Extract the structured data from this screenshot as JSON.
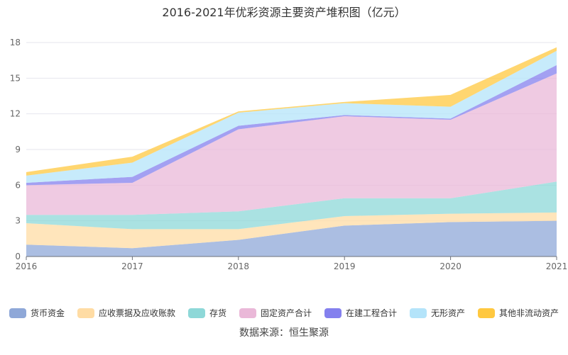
{
  "chart_data": {
    "type": "area",
    "stacked": true,
    "title": "2016-2021年优彩资源主要资产堆积图（亿元）",
    "x": [
      "2016",
      "2017",
      "2018",
      "2019",
      "2020",
      "2021"
    ],
    "ylim": [
      0,
      18
    ],
    "yticks": [
      0,
      3,
      6,
      9,
      12,
      15,
      18
    ],
    "grid": true,
    "legend": "bottom",
    "source": "数据来源：恒生聚源",
    "series": [
      {
        "name": "货币资金",
        "color": "#8fa8d8",
        "values": [
          1.0,
          0.7,
          1.4,
          2.6,
          2.9,
          3.0
        ]
      },
      {
        "name": "应收票据及应收账款",
        "color": "#ffdca4",
        "values": [
          1.8,
          1.6,
          0.9,
          0.8,
          0.7,
          0.7
        ]
      },
      {
        "name": "存货",
        "color": "#8ed8d8",
        "values": [
          0.7,
          1.2,
          1.5,
          1.5,
          1.3,
          2.6
        ]
      },
      {
        "name": "固定资产合计",
        "color": "#eab8d8",
        "values": [
          2.5,
          2.7,
          6.9,
          6.9,
          6.6,
          9.1
        ]
      },
      {
        "name": "在建工程合计",
        "color": "#8480ee",
        "values": [
          0.2,
          0.5,
          0.3,
          0.1,
          0.1,
          0.7
        ]
      },
      {
        "name": "无形资产",
        "color": "#b4e4fa",
        "values": [
          0.6,
          1.2,
          1.1,
          1.0,
          1.0,
          1.2
        ]
      },
      {
        "name": "其他非流动资产",
        "color": "#ffc840",
        "values": [
          0.3,
          0.5,
          0.1,
          0.1,
          1.0,
          0.3
        ]
      }
    ]
  }
}
